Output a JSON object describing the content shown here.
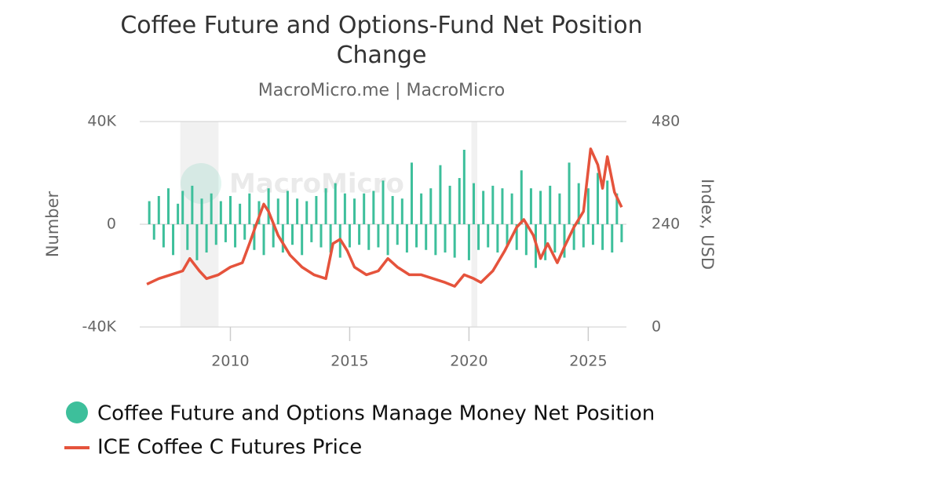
{
  "chart_data": {
    "type": "bar-line",
    "title": "Coffee Future and Options-Fund Net Position Change",
    "subtitle": "MacroMicro.me | MacroMicro",
    "watermark": "MacroMicro",
    "y_label": "Number",
    "y2_label": "Index, USD",
    "xlim": [
      2006.2,
      2026.6
    ],
    "xticks": [
      2010,
      2015,
      2020,
      2025
    ],
    "ylim": [
      -40000,
      40000
    ],
    "yticks": [
      {
        "value": -40000,
        "label": "-40K"
      },
      0,
      {
        "value": 40000,
        "label": "40K"
      }
    ],
    "y2lim": [
      0,
      480
    ],
    "y2ticks": [
      0,
      240,
      480
    ],
    "grid": true,
    "shaded_ranges": [
      [
        2007.9,
        2009.5
      ],
      [
        2020.1,
        2020.35
      ]
    ],
    "series": [
      {
        "name": "Coffee Future and Options Manage Money Net Position",
        "color": "#3dbf9b",
        "type": "bar",
        "x": [
          2006.6,
          2006.8,
          2007.0,
          2007.2,
          2007.4,
          2007.6,
          2007.8,
          2008.0,
          2008.2,
          2008.4,
          2008.6,
          2008.8,
          2009.0,
          2009.2,
          2009.4,
          2009.6,
          2009.8,
          2010.0,
          2010.2,
          2010.4,
          2010.6,
          2010.8,
          2011.0,
          2011.2,
          2011.4,
          2011.6,
          2011.8,
          2012.0,
          2012.2,
          2012.4,
          2012.6,
          2012.8,
          2013.0,
          2013.2,
          2013.4,
          2013.6,
          2013.8,
          2014.0,
          2014.2,
          2014.4,
          2014.6,
          2014.8,
          2015.0,
          2015.2,
          2015.4,
          2015.6,
          2015.8,
          2016.0,
          2016.2,
          2016.4,
          2016.6,
          2016.8,
          2017.0,
          2017.2,
          2017.4,
          2017.6,
          2017.8,
          2018.0,
          2018.2,
          2018.4,
          2018.6,
          2018.8,
          2019.0,
          2019.2,
          2019.4,
          2019.6,
          2019.8,
          2020.0,
          2020.2,
          2020.4,
          2020.6,
          2020.8,
          2021.0,
          2021.2,
          2021.4,
          2021.6,
          2021.8,
          2022.0,
          2022.2,
          2022.4,
          2022.6,
          2022.8,
          2023.0,
          2023.2,
          2023.4,
          2023.6,
          2023.8,
          2024.0,
          2024.2,
          2024.4,
          2024.6,
          2024.8,
          2025.0,
          2025.2,
          2025.4,
          2025.6,
          2025.8,
          2026.0,
          2026.2,
          2026.4
        ],
        "values": [
          9000,
          -6000,
          11000,
          -9000,
          14000,
          -12000,
          8000,
          13000,
          -10000,
          15000,
          -14000,
          10000,
          -11000,
          12000,
          -8000,
          9000,
          -7000,
          11000,
          -9000,
          8000,
          -6000,
          12000,
          -10000,
          9000,
          -12000,
          14000,
          -9000,
          10000,
          -11000,
          13000,
          -8000,
          10000,
          -12000,
          9000,
          -7000,
          11000,
          -9000,
          14000,
          -11000,
          16000,
          -13000,
          12000,
          -9000,
          10000,
          -8000,
          12000,
          -10000,
          13000,
          -9000,
          17000,
          -12000,
          11000,
          -8000,
          10000,
          -11000,
          24000,
          -9000,
          12000,
          -10000,
          14000,
          -12000,
          23000,
          -11000,
          15000,
          -13000,
          18000,
          29000,
          -14000,
          16000,
          -10000,
          13000,
          -9000,
          15000,
          -11000,
          14000,
          -8000,
          12000,
          -10000,
          21000,
          -12000,
          14000,
          -17000,
          13000,
          -14000,
          15000,
          -11000,
          12000,
          -13000,
          24000,
          -10000,
          16000,
          -9000,
          14000,
          -8000,
          20000,
          -10000,
          17000,
          -11000,
          12000,
          -7000
        ]
      },
      {
        "name": "ICE Coffee C Futures Price",
        "color": "#e5533c",
        "type": "line",
        "axis": "y2",
        "x": [
          2006.5,
          2007.0,
          2007.5,
          2008.0,
          2008.3,
          2008.7,
          2009.0,
          2009.5,
          2010.0,
          2010.5,
          2010.8,
          2011.1,
          2011.4,
          2011.6,
          2012.0,
          2012.5,
          2013.0,
          2013.5,
          2014.0,
          2014.3,
          2014.6,
          2014.9,
          2015.2,
          2015.7,
          2016.2,
          2016.6,
          2017.0,
          2017.5,
          2018.0,
          2018.5,
          2019.0,
          2019.4,
          2019.8,
          2020.2,
          2020.5,
          2021.0,
          2021.5,
          2022.0,
          2022.3,
          2022.7,
          2023.0,
          2023.3,
          2023.7,
          2024.0,
          2024.4,
          2024.8,
          2025.1,
          2025.4,
          2025.6,
          2025.8,
          2026.1,
          2026.4
        ],
        "values": [
          100,
          113,
          122,
          131,
          160,
          131,
          113,
          122,
          140,
          150,
          195,
          242,
          287,
          270,
          214,
          168,
          140,
          122,
          113,
          195,
          205,
          178,
          140,
          122,
          131,
          160,
          140,
          122,
          122,
          113,
          104,
          95,
          122,
          113,
          104,
          131,
          178,
          233,
          251,
          214,
          160,
          195,
          150,
          187,
          233,
          270,
          416,
          379,
          324,
          398,
          315,
          280
        ]
      }
    ]
  }
}
